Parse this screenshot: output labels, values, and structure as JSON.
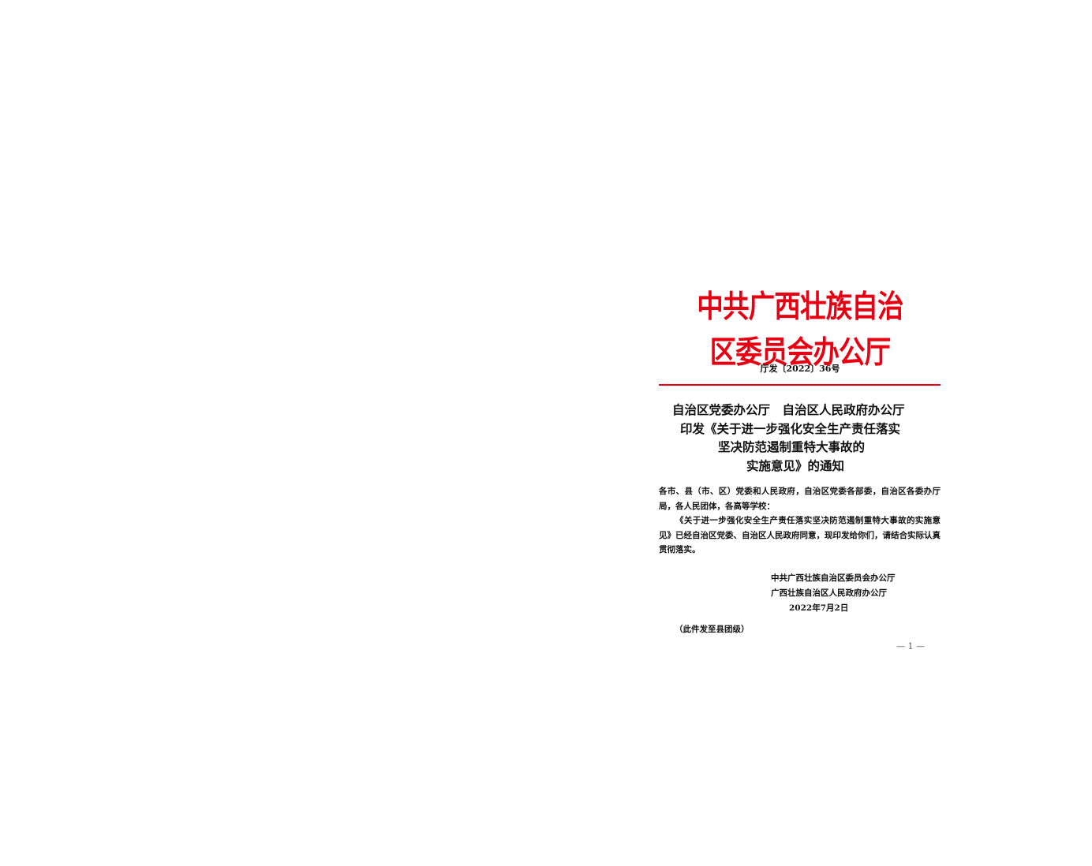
{
  "document": {
    "issuing_org": "中共广西壮族自治区委员会办公厅",
    "doc_number": "厅发〔2022〕36号",
    "title_lines": [
      "自治区党委办公厅　自治区人民政府办公厅",
      "印发《关于进一步强化安全生产责任落实",
      "坚决防范遏制重特大事故的",
      "实施意见》的通知"
    ],
    "recipients": "各市、县（市、区）党委和人民政府，自治区党委各部委，自治区各委办厅局，各人民团体，各高等学校：",
    "body_paragraph": "《关于进一步强化安全生产责任落实坚决防范遏制重特大事故的实施意见》已经自治区党委、自治区人民政府同意，现印发给你们，请结合实际认真贯彻落实。",
    "signatories": [
      "中共广西壮族自治区委员会办公厅",
      "广西壮族自治区人民政府办公厅"
    ],
    "date": "2022年7月2日",
    "distribution_note": "（此件发至县团级）",
    "page_number": "— 1 —"
  },
  "colors": {
    "header_red": "#e60012",
    "text": "#111111"
  }
}
